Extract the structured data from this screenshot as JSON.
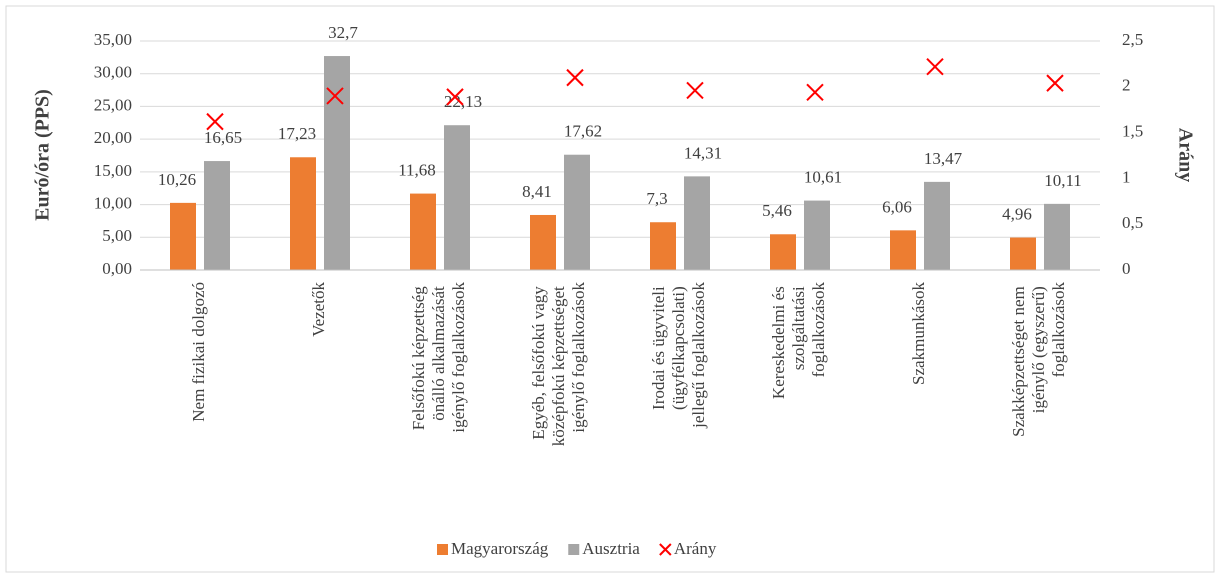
{
  "chart_data": {
    "type": "bar",
    "y_label": "Euró/óra (PPS)",
    "y2_label": "Arány",
    "categories": [
      "Nem fizikai dolgozó",
      "Vezetők",
      "Felsőfokú képzettség önálló alkalmazását igénylő foglalkozások",
      "Egyéb, felsőfokú vagy középfokú képzettséget igénylő foglalkozások",
      "Irodai és ügyviteli (ügyfélkapcsolati) jellegű foglalkozások",
      "Kereskedelmi és szolgáltatási foglalkozások",
      "Szakmunkások",
      "Szakképzettséget nem igénylő (egyszerű) foglalkozások"
    ],
    "series": [
      {
        "name": "Magyarország",
        "color": "#ed7d31",
        "type": "bar",
        "values": [
          10.26,
          17.23,
          11.68,
          8.41,
          7.3,
          5.46,
          6.06,
          4.96
        ],
        "value_labels": [
          "10,26",
          "17,23",
          "11,68",
          "8,41",
          "7,3",
          "5,46",
          "6,06",
          "4,96"
        ]
      },
      {
        "name": "Ausztria",
        "color": "#a5a5a5",
        "type": "bar",
        "values": [
          16.65,
          32.7,
          22.13,
          17.62,
          14.31,
          10.61,
          13.47,
          10.11
        ],
        "value_labels": [
          "16,65",
          "32,7",
          "22,13",
          "17,62",
          "14,31",
          "10,61",
          "13,47",
          "10,11"
        ]
      },
      {
        "name": "Arány",
        "color": "#ff0000",
        "type": "scatter",
        "axis": "y2",
        "values": [
          1.62,
          1.9,
          1.89,
          2.1,
          1.96,
          1.94,
          2.22,
          2.04
        ]
      }
    ],
    "ylim": [
      0,
      35
    ],
    "yticks": [
      {
        "value": 0,
        "label": "0,00"
      },
      {
        "value": 5,
        "label": "5,00"
      },
      {
        "value": 10,
        "label": "10,00"
      },
      {
        "value": 15,
        "label": "15,00"
      },
      {
        "value": 20,
        "label": "20,00"
      },
      {
        "value": 25,
        "label": "25,00"
      },
      {
        "value": 30,
        "label": "30,00"
      },
      {
        "value": 35,
        "label": "35,00"
      }
    ],
    "y2lim": [
      0,
      2.5
    ],
    "y2ticks": [
      0,
      {
        "value": 0.5,
        "label": "0,5"
      },
      1,
      {
        "value": 1.5,
        "label": "1,5"
      },
      2,
      {
        "value": 2.5,
        "label": "2,5"
      }
    ],
    "grid": true,
    "legend": "bottom"
  }
}
